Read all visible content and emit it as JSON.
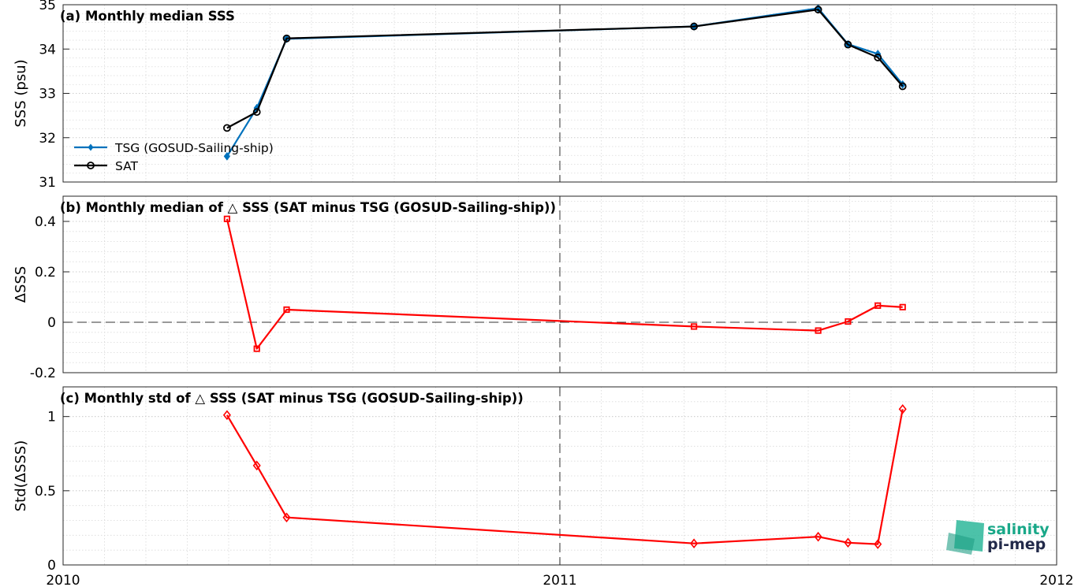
{
  "chart_data": [
    {
      "type": "line",
      "title": "(a) Monthly median SSS",
      "ylabel": "SSS (psu)",
      "ylim": [
        31,
        35
      ],
      "yticks": [
        "31",
        "32",
        "33",
        "34",
        "35"
      ],
      "xlim": [
        2010.0,
        2012.0
      ],
      "xticks": [
        "2010",
        "2011",
        "2012"
      ],
      "grid": true,
      "legend": "lower-left",
      "series": [
        {
          "name": "TSG (GOSUD-Sailing-ship)",
          "color": "#0072bd",
          "marker": "filled-diamond",
          "x": [
            2010.33,
            2010.39,
            2010.45,
            2011.27,
            2011.52,
            2011.58,
            2011.64,
            2011.69
          ],
          "y": [
            31.58,
            32.67,
            34.23,
            34.51,
            34.92,
            34.11,
            33.89,
            33.2
          ]
        },
        {
          "name": "SAT",
          "color": "#000000",
          "marker": "open-circle",
          "x": [
            2010.33,
            2010.39,
            2010.45,
            2011.27,
            2011.52,
            2011.58,
            2011.64,
            2011.69
          ],
          "y": [
            32.22,
            32.58,
            34.24,
            34.51,
            34.89,
            34.1,
            33.81,
            33.16
          ]
        }
      ]
    },
    {
      "type": "line",
      "title": "(b) Monthly median of △ SSS (SAT minus TSG (GOSUD-Sailing-ship))",
      "ylabel": "ΔSSS",
      "ylim": [
        -0.2,
        0.5
      ],
      "yticks": [
        "-0.2",
        "0",
        "0.2",
        "0.4"
      ],
      "xlim": [
        2010.0,
        2012.0
      ],
      "grid": true,
      "series": [
        {
          "color": "#ff0000",
          "marker": "open-square",
          "x": [
            2010.33,
            2010.39,
            2010.45,
            2011.27,
            2011.52,
            2011.58,
            2011.64,
            2011.69
          ],
          "y": [
            0.41,
            -0.105,
            0.05,
            -0.017,
            -0.033,
            0.003,
            0.066,
            0.06
          ]
        }
      ]
    },
    {
      "type": "line",
      "title": "(c) Monthly std of △ SSS (SAT minus TSG (GOSUD-Sailing-ship))",
      "ylabel": "Std(ΔSSS)",
      "ylim": [
        0,
        1.2
      ],
      "yticks": [
        "0",
        "0.5",
        "1"
      ],
      "xlim": [
        2010.0,
        2012.0
      ],
      "xticks": [
        "2010",
        "2011",
        "2012"
      ],
      "grid": true,
      "series": [
        {
          "color": "#ff0000",
          "marker": "open-diamond",
          "x": [
            2010.33,
            2010.39,
            2010.45,
            2011.27,
            2011.52,
            2011.58,
            2011.64,
            2011.69
          ],
          "y": [
            1.01,
            0.67,
            0.32,
            0.145,
            0.19,
            0.15,
            0.14,
            1.05
          ]
        }
      ]
    }
  ],
  "logo": {
    "line1": "salinity",
    "line2": "pi-mep"
  }
}
